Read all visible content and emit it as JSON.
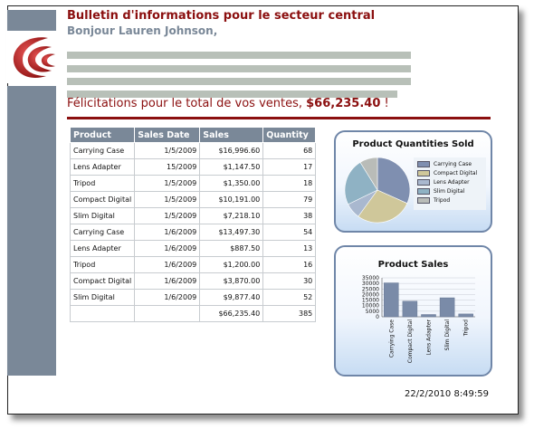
{
  "header": {
    "title": "Bulletin d'informations pour le secteur central",
    "greeting": "Bonjour Lauren Johnson,"
  },
  "congratulations": {
    "text": "Félicitations pour le total de vos ventes, ",
    "amount": "$66,235.40",
    "suffix": " !"
  },
  "table": {
    "headers": [
      "Product",
      "Sales Date",
      "Sales",
      "Quantity"
    ],
    "rows": [
      [
        "Carrying Case",
        "1/5/2009",
        "$16,996.60",
        "68"
      ],
      [
        "Lens Adapter",
        "15/2009",
        "$1,147.50",
        "17"
      ],
      [
        "Tripod",
        "1/5/2009",
        "$1,350.00",
        "18"
      ],
      [
        "Compact Digital",
        "1/5/2009",
        "$10,191.00",
        "79"
      ],
      [
        "Slim Digital",
        "1/5/2009",
        "$7,218.10",
        "38"
      ],
      [
        "Carrying Case",
        "1/6/2009",
        "$13,497.30",
        "54"
      ],
      [
        "Lens Adapter",
        "1/6/2009",
        "$887.50",
        "13"
      ],
      [
        "Tripod",
        "1/6/2009",
        "$1,200.00",
        "16"
      ],
      [
        "Compact Digital",
        "1/6/2009",
        "$3,870.00",
        "30"
      ],
      [
        "Slim Digital",
        "1/6/2009",
        "$9,877.40",
        "52"
      ]
    ],
    "total": [
      "",
      "",
      "$66,235.40",
      "385"
    ]
  },
  "chart_data": [
    {
      "type": "pie",
      "title": "Product Quantities Sold",
      "categories": [
        "Carrying Case",
        "Compact Digital",
        "Lens Adapter",
        "Slim Digital",
        "Tripod"
      ],
      "values": [
        122,
        109,
        30,
        90,
        34
      ],
      "colors": [
        "#7f8fb0",
        "#cfc79a",
        "#a9b8cf",
        "#8fb2c4",
        "#b9bcb8"
      ],
      "legend": "right"
    },
    {
      "type": "bar",
      "title": "Product Sales",
      "categories": [
        "Carrying Case",
        "Compact Digital",
        "Lens Adapter",
        "Slim Digital",
        "Tripod"
      ],
      "values": [
        30493.9,
        14061,
        2035,
        17095.5,
        2550
      ],
      "ylim": [
        0,
        35000
      ],
      "yticks": [
        "0",
        "5000",
        "10000",
        "15000",
        "20000",
        "25000",
        "30000",
        "35000"
      ],
      "grid": true,
      "color": "#7a8ba8"
    }
  ],
  "footer": {
    "timestamp": "22/2/2010 8:49:59"
  }
}
